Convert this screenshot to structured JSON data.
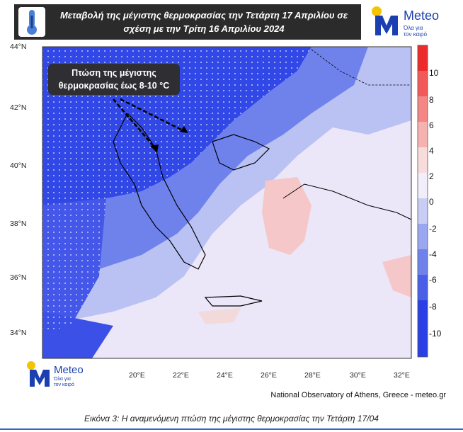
{
  "header": {
    "title_line1": "Μεταβολή της μέγιστης θερμοκρασίας την Τετάρτη 17 Απριλίου σε",
    "title_line2": "σχέση με την Τρίτη 16 Απριλίου 2024",
    "icon": "thermometer-icon"
  },
  "brand": {
    "name": "Meteo",
    "tagline_line1": "Όλα για",
    "tagline_line2": "τον καιρό"
  },
  "map": {
    "lat_labels": [
      "44°N",
      "42°N",
      "40°N",
      "38°N",
      "36°N",
      "34°N"
    ],
    "lon_labels": [
      "20°E",
      "22°E",
      "24°E",
      "26°E",
      "28°E",
      "30°E",
      "32°E"
    ],
    "callout_line1": "Πτώση της μέγιστης",
    "callout_line2": "θερμοκρασίας έως 8-10 °C",
    "colors": {
      "strong_blue": "#3248e6",
      "mid_blue": "#6f82ec",
      "light_blue": "#b9c2f3",
      "pale": "#ebe6f8",
      "light_pink": "#f6c7c8",
      "red": "#ee2b2b"
    }
  },
  "colorbar": {
    "labels": [
      "10",
      "8",
      "6",
      "4",
      "2",
      "0",
      "-2",
      "-4",
      "-6",
      "-8",
      "-10"
    ]
  },
  "source": "National Observatory of Athens, Greece - meteo.gr",
  "caption": "Εικόνα 3: Η αναμενόμενη πτώση της μέγιστης θερμοκρασίας την Τετάρτη 17/04"
}
